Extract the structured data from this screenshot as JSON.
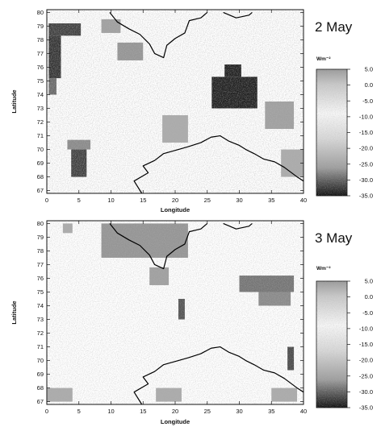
{
  "panels": [
    {
      "date_label": "2 May",
      "x_axis_label": "Longitude",
      "y_axis_label": "Latitude",
      "x_ticks": [
        "0",
        "5",
        "10",
        "15",
        "20",
        "25",
        "30",
        "35",
        "40"
      ],
      "y_ticks": [
        "80",
        "79",
        "78",
        "77",
        "76",
        "75",
        "74",
        "73",
        "72",
        "71",
        "70",
        "69",
        "68",
        "67"
      ],
      "colorbar": {
        "unit": "Wm⁻²",
        "ticks": [
          "5.0",
          "0.0",
          "-5.0",
          "-10.0",
          "-15.0",
          "-20.0",
          "-25.0",
          "-30.0",
          "-35.0"
        ]
      },
      "dark_cells": [
        {
          "lon": [
            0.3,
            5.3
          ],
          "lat": [
            78.3,
            79.2
          ],
          "level": 0.8
        },
        {
          "lon": [
            0.3,
            2.2
          ],
          "lat": [
            75.2,
            78.3
          ],
          "level": 0.85
        },
        {
          "lon": [
            0.3,
            1.5
          ],
          "lat": [
            74.0,
            75.2
          ],
          "level": 0.6
        },
        {
          "lon": [
            25.7,
            32.8
          ],
          "lat": [
            73.0,
            75.3
          ],
          "level": 0.95
        },
        {
          "lon": [
            27.7,
            30.3
          ],
          "lat": [
            75.3,
            76.2
          ],
          "level": 0.95
        },
        {
          "lon": [
            3.8,
            6.2
          ],
          "lat": [
            68.0,
            70.0
          ],
          "level": 0.8
        },
        {
          "lon": [
            3.2,
            6.8
          ],
          "lat": [
            70.0,
            70.7
          ],
          "level": 0.45
        },
        {
          "lon": [
            8.5,
            11.5
          ],
          "lat": [
            78.5,
            79.5
          ],
          "level": 0.35
        },
        {
          "lon": [
            11.0,
            15.0
          ],
          "lat": [
            76.5,
            77.8
          ],
          "level": 0.4
        },
        {
          "lon": [
            34.0,
            38.5
          ],
          "lat": [
            71.5,
            73.5
          ],
          "level": 0.35
        },
        {
          "lon": [
            18.0,
            22.0
          ],
          "lat": [
            70.5,
            72.5
          ],
          "level": 0.3
        },
        {
          "lon": [
            36.5,
            40.0
          ],
          "lat": [
            68.0,
            70.0
          ],
          "level": 0.3
        }
      ]
    },
    {
      "date_label": "3 May",
      "x_axis_label": "Longitude",
      "y_axis_label": "Latitude",
      "x_ticks": [
        "0",
        "5",
        "10",
        "15",
        "20",
        "25",
        "30",
        "35",
        "40"
      ],
      "y_ticks": [
        "80",
        "79",
        "78",
        "77",
        "76",
        "75",
        "74",
        "73",
        "72",
        "71",
        "70",
        "69",
        "68",
        "67"
      ],
      "colorbar": {
        "unit": "Wm⁻²",
        "ticks": [
          "5.0",
          "0.0",
          "-5.0",
          "-10.0",
          "-15.0",
          "-20.0",
          "-25.0",
          "-30.0",
          "-35.0"
        ]
      },
      "dark_cells": [
        {
          "lon": [
            8.5,
            22.0
          ],
          "lat": [
            77.5,
            80.0
          ],
          "level": 0.4
        },
        {
          "lon": [
            30.0,
            38.5
          ],
          "lat": [
            75.0,
            76.2
          ],
          "level": 0.55
        },
        {
          "lon": [
            33.0,
            38.0
          ],
          "lat": [
            74.0,
            75.0
          ],
          "level": 0.45
        },
        {
          "lon": [
            16.0,
            19.0
          ],
          "lat": [
            75.5,
            76.8
          ],
          "level": 0.35
        },
        {
          "lon": [
            20.5,
            21.5
          ],
          "lat": [
            73.0,
            74.5
          ],
          "level": 0.7
        },
        {
          "lon": [
            37.5,
            38.5
          ],
          "lat": [
            69.3,
            71.0
          ],
          "level": 0.75
        },
        {
          "lon": [
            0.0,
            4.0
          ],
          "lat": [
            67.0,
            68.0
          ],
          "level": 0.3
        },
        {
          "lon": [
            17.0,
            21.0
          ],
          "lat": [
            67.0,
            68.0
          ],
          "level": 0.3
        },
        {
          "lon": [
            35.0,
            39.0
          ],
          "lat": [
            67.0,
            68.0
          ],
          "level": 0.3
        },
        {
          "lon": [
            2.5,
            4.0
          ],
          "lat": [
            79.3,
            80.0
          ],
          "level": 0.3
        }
      ]
    }
  ],
  "coastlines": {
    "svalbard": [
      [
        9.8,
        80.0
      ],
      [
        11.0,
        79.3
      ],
      [
        12.8,
        78.8
      ],
      [
        14.5,
        78.4
      ],
      [
        16.0,
        77.7
      ],
      [
        16.8,
        77.0
      ],
      [
        18.2,
        76.7
      ],
      [
        18.7,
        77.6
      ],
      [
        20.0,
        78.1
      ],
      [
        21.5,
        78.5
      ],
      [
        22.2,
        79.4
      ],
      [
        24.0,
        79.6
      ],
      [
        25.0,
        80.0
      ]
    ],
    "svalbard_east": [
      [
        27.5,
        80.0
      ],
      [
        29.5,
        79.6
      ],
      [
        31.5,
        79.8
      ],
      [
        32.0,
        80.0
      ]
    ],
    "norway": [
      [
        14.8,
        66.8
      ],
      [
        13.6,
        67.7
      ],
      [
        15.8,
        68.3
      ],
      [
        15.0,
        68.8
      ],
      [
        16.8,
        69.2
      ],
      [
        18.2,
        69.7
      ],
      [
        20.5,
        70.0
      ],
      [
        22.0,
        70.2
      ],
      [
        24.0,
        70.5
      ],
      [
        25.6,
        70.9
      ],
      [
        27.0,
        71.0
      ],
      [
        28.4,
        70.6
      ],
      [
        30.0,
        70.3
      ],
      [
        31.0,
        70.0
      ],
      [
        32.3,
        69.7
      ],
      [
        33.8,
        69.3
      ],
      [
        35.5,
        69.1
      ],
      [
        37.0,
        68.7
      ],
      [
        39.0,
        68.0
      ],
      [
        40.0,
        67.7
      ]
    ]
  }
}
